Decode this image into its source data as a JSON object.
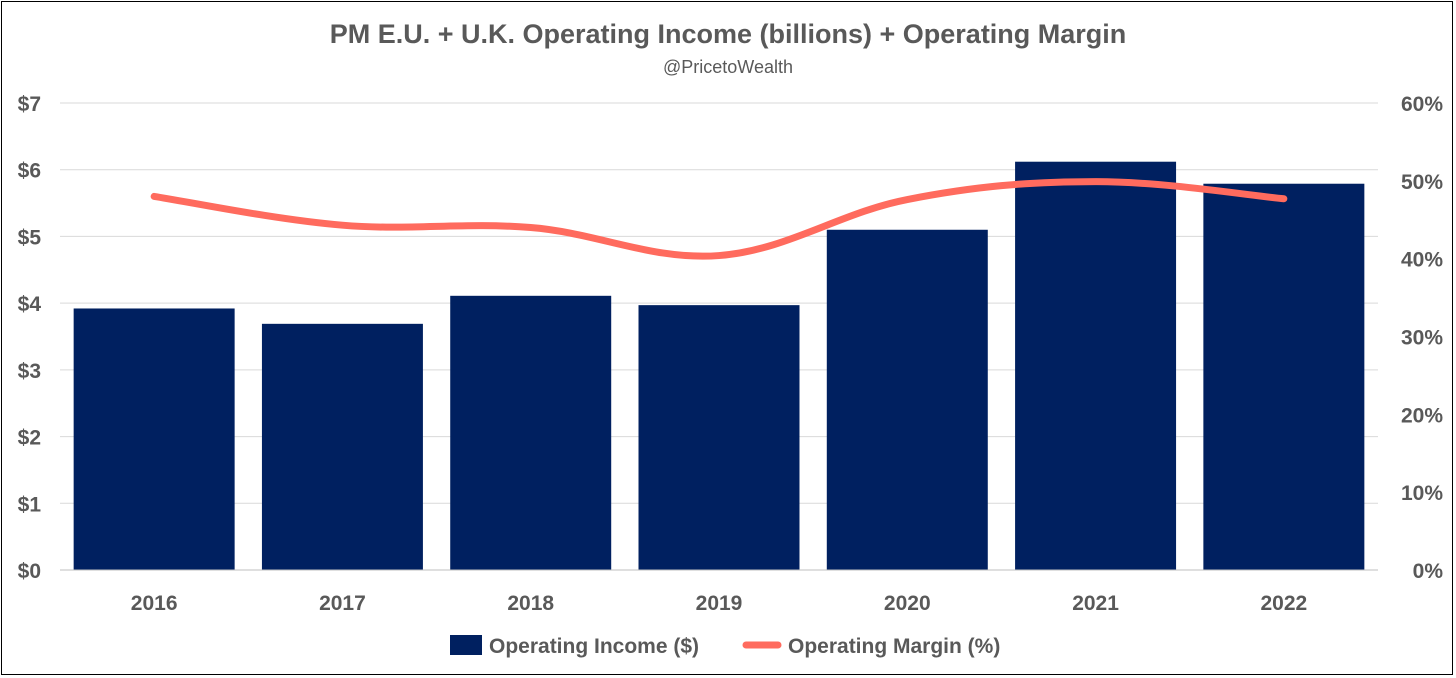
{
  "chart_data": {
    "type": "bar+line",
    "title": "PM E.U. + U.K. Operating Income (billions) + Operating Margin",
    "subtitle": "@PricetoWealth",
    "categories": [
      "2016",
      "2017",
      "2018",
      "2019",
      "2020",
      "2021",
      "2022"
    ],
    "series": [
      {
        "name": "Operating Income ($)",
        "type": "bar",
        "axis": "left",
        "color": "#002060",
        "values": [
          3.92,
          3.69,
          4.11,
          3.97,
          5.1,
          6.12,
          5.79
        ]
      },
      {
        "name": "Operating Margin (%)",
        "type": "line",
        "axis": "right",
        "color": "#FF6B5E",
        "values": [
          48.0,
          44.3,
          44.0,
          40.4,
          47.6,
          49.9,
          47.7
        ]
      }
    ],
    "y_left": {
      "min": 0,
      "max": 7,
      "ticks": [
        "$0",
        "$1",
        "$2",
        "$3",
        "$4",
        "$5",
        "$6",
        "$7"
      ]
    },
    "y_right": {
      "min": 0,
      "max": 60,
      "ticks": [
        "0%",
        "10%",
        "20%",
        "30%",
        "40%",
        "50%",
        "60%"
      ]
    },
    "grid": true,
    "legend_position": "bottom"
  }
}
